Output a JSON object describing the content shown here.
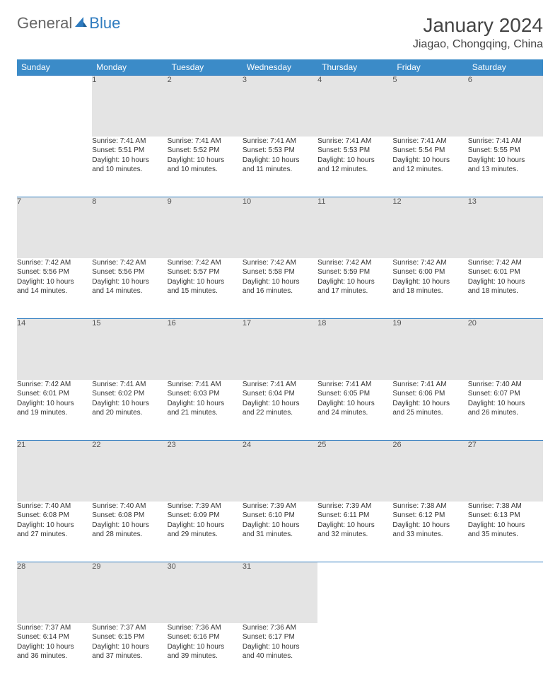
{
  "logo": {
    "general": "General",
    "blue": "Blue"
  },
  "title": "January 2024",
  "location": "Jiagao, Chongqing, China",
  "colors": {
    "header_bg": "#3b8bc8",
    "daynum_bg": "#e4e4e4",
    "rule": "#2e7bbf",
    "text": "#333333",
    "page_bg": "#ffffff"
  },
  "weekdays": [
    "Sunday",
    "Monday",
    "Tuesday",
    "Wednesday",
    "Thursday",
    "Friday",
    "Saturday"
  ],
  "weeks": [
    {
      "nums": [
        "",
        "1",
        "2",
        "3",
        "4",
        "5",
        "6"
      ],
      "cells": [
        null,
        {
          "sr": "Sunrise: 7:41 AM",
          "ss": "Sunset: 5:51 PM",
          "d1": "Daylight: 10 hours",
          "d2": "and 10 minutes."
        },
        {
          "sr": "Sunrise: 7:41 AM",
          "ss": "Sunset: 5:52 PM",
          "d1": "Daylight: 10 hours",
          "d2": "and 10 minutes."
        },
        {
          "sr": "Sunrise: 7:41 AM",
          "ss": "Sunset: 5:53 PM",
          "d1": "Daylight: 10 hours",
          "d2": "and 11 minutes."
        },
        {
          "sr": "Sunrise: 7:41 AM",
          "ss": "Sunset: 5:53 PM",
          "d1": "Daylight: 10 hours",
          "d2": "and 12 minutes."
        },
        {
          "sr": "Sunrise: 7:41 AM",
          "ss": "Sunset: 5:54 PM",
          "d1": "Daylight: 10 hours",
          "d2": "and 12 minutes."
        },
        {
          "sr": "Sunrise: 7:41 AM",
          "ss": "Sunset: 5:55 PM",
          "d1": "Daylight: 10 hours",
          "d2": "and 13 minutes."
        }
      ]
    },
    {
      "nums": [
        "7",
        "8",
        "9",
        "10",
        "11",
        "12",
        "13"
      ],
      "cells": [
        {
          "sr": "Sunrise: 7:42 AM",
          "ss": "Sunset: 5:56 PM",
          "d1": "Daylight: 10 hours",
          "d2": "and 14 minutes."
        },
        {
          "sr": "Sunrise: 7:42 AM",
          "ss": "Sunset: 5:56 PM",
          "d1": "Daylight: 10 hours",
          "d2": "and 14 minutes."
        },
        {
          "sr": "Sunrise: 7:42 AM",
          "ss": "Sunset: 5:57 PM",
          "d1": "Daylight: 10 hours",
          "d2": "and 15 minutes."
        },
        {
          "sr": "Sunrise: 7:42 AM",
          "ss": "Sunset: 5:58 PM",
          "d1": "Daylight: 10 hours",
          "d2": "and 16 minutes."
        },
        {
          "sr": "Sunrise: 7:42 AM",
          "ss": "Sunset: 5:59 PM",
          "d1": "Daylight: 10 hours",
          "d2": "and 17 minutes."
        },
        {
          "sr": "Sunrise: 7:42 AM",
          "ss": "Sunset: 6:00 PM",
          "d1": "Daylight: 10 hours",
          "d2": "and 18 minutes."
        },
        {
          "sr": "Sunrise: 7:42 AM",
          "ss": "Sunset: 6:01 PM",
          "d1": "Daylight: 10 hours",
          "d2": "and 18 minutes."
        }
      ]
    },
    {
      "nums": [
        "14",
        "15",
        "16",
        "17",
        "18",
        "19",
        "20"
      ],
      "cells": [
        {
          "sr": "Sunrise: 7:42 AM",
          "ss": "Sunset: 6:01 PM",
          "d1": "Daylight: 10 hours",
          "d2": "and 19 minutes."
        },
        {
          "sr": "Sunrise: 7:41 AM",
          "ss": "Sunset: 6:02 PM",
          "d1": "Daylight: 10 hours",
          "d2": "and 20 minutes."
        },
        {
          "sr": "Sunrise: 7:41 AM",
          "ss": "Sunset: 6:03 PM",
          "d1": "Daylight: 10 hours",
          "d2": "and 21 minutes."
        },
        {
          "sr": "Sunrise: 7:41 AM",
          "ss": "Sunset: 6:04 PM",
          "d1": "Daylight: 10 hours",
          "d2": "and 22 minutes."
        },
        {
          "sr": "Sunrise: 7:41 AM",
          "ss": "Sunset: 6:05 PM",
          "d1": "Daylight: 10 hours",
          "d2": "and 24 minutes."
        },
        {
          "sr": "Sunrise: 7:41 AM",
          "ss": "Sunset: 6:06 PM",
          "d1": "Daylight: 10 hours",
          "d2": "and 25 minutes."
        },
        {
          "sr": "Sunrise: 7:40 AM",
          "ss": "Sunset: 6:07 PM",
          "d1": "Daylight: 10 hours",
          "d2": "and 26 minutes."
        }
      ]
    },
    {
      "nums": [
        "21",
        "22",
        "23",
        "24",
        "25",
        "26",
        "27"
      ],
      "cells": [
        {
          "sr": "Sunrise: 7:40 AM",
          "ss": "Sunset: 6:08 PM",
          "d1": "Daylight: 10 hours",
          "d2": "and 27 minutes."
        },
        {
          "sr": "Sunrise: 7:40 AM",
          "ss": "Sunset: 6:08 PM",
          "d1": "Daylight: 10 hours",
          "d2": "and 28 minutes."
        },
        {
          "sr": "Sunrise: 7:39 AM",
          "ss": "Sunset: 6:09 PM",
          "d1": "Daylight: 10 hours",
          "d2": "and 29 minutes."
        },
        {
          "sr": "Sunrise: 7:39 AM",
          "ss": "Sunset: 6:10 PM",
          "d1": "Daylight: 10 hours",
          "d2": "and 31 minutes."
        },
        {
          "sr": "Sunrise: 7:39 AM",
          "ss": "Sunset: 6:11 PM",
          "d1": "Daylight: 10 hours",
          "d2": "and 32 minutes."
        },
        {
          "sr": "Sunrise: 7:38 AM",
          "ss": "Sunset: 6:12 PM",
          "d1": "Daylight: 10 hours",
          "d2": "and 33 minutes."
        },
        {
          "sr": "Sunrise: 7:38 AM",
          "ss": "Sunset: 6:13 PM",
          "d1": "Daylight: 10 hours",
          "d2": "and 35 minutes."
        }
      ]
    },
    {
      "nums": [
        "28",
        "29",
        "30",
        "31",
        "",
        "",
        ""
      ],
      "cells": [
        {
          "sr": "Sunrise: 7:37 AM",
          "ss": "Sunset: 6:14 PM",
          "d1": "Daylight: 10 hours",
          "d2": "and 36 minutes."
        },
        {
          "sr": "Sunrise: 7:37 AM",
          "ss": "Sunset: 6:15 PM",
          "d1": "Daylight: 10 hours",
          "d2": "and 37 minutes."
        },
        {
          "sr": "Sunrise: 7:36 AM",
          "ss": "Sunset: 6:16 PM",
          "d1": "Daylight: 10 hours",
          "d2": "and 39 minutes."
        },
        {
          "sr": "Sunrise: 7:36 AM",
          "ss": "Sunset: 6:17 PM",
          "d1": "Daylight: 10 hours",
          "d2": "and 40 minutes."
        },
        null,
        null,
        null
      ]
    }
  ]
}
